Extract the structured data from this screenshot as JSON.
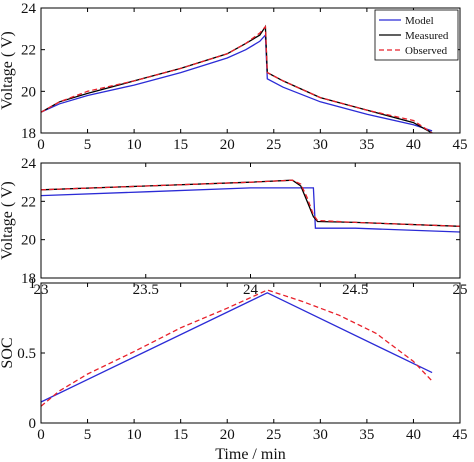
{
  "colors": {
    "model": "#2b2bd6",
    "measured": "#000000",
    "observed": "#e8202a"
  },
  "chart_data": [
    {
      "type": "line",
      "ylabel": "Voltage ( V)",
      "xlabel": "",
      "xlim": [
        0,
        45
      ],
      "ylim": [
        18,
        24
      ],
      "xticks": [
        "0",
        "5",
        "10",
        "15",
        "20",
        "25",
        "30",
        "35",
        "40",
        "45"
      ],
      "yticks": [
        "18",
        "20",
        "22",
        "24"
      ],
      "legend": {
        "position": "top-right",
        "entries": [
          "Model",
          "Measured",
          "Observed"
        ]
      },
      "series": [
        {
          "name": "Model",
          "x": [
            0,
            2,
            5,
            10,
            15,
            20,
            22,
            23.5,
            24.1,
            24.3,
            26,
            30,
            35,
            40,
            42
          ],
          "y": [
            19.0,
            19.4,
            19.8,
            20.3,
            20.9,
            21.6,
            22.0,
            22.4,
            22.7,
            20.6,
            20.2,
            19.5,
            18.9,
            18.4,
            18.1
          ]
        },
        {
          "name": "Measured",
          "x": [
            0,
            2,
            5,
            10,
            15,
            20,
            22,
            23.5,
            24.1,
            24.3,
            26,
            30,
            35,
            40,
            42
          ],
          "y": [
            19.0,
            19.5,
            19.9,
            20.5,
            21.1,
            21.8,
            22.3,
            22.7,
            23.1,
            20.9,
            20.5,
            19.7,
            19.1,
            18.5,
            18.0
          ]
        },
        {
          "name": "Observed",
          "x": [
            0,
            2,
            5,
            10,
            15,
            20,
            22,
            23.5,
            24.1,
            24.3,
            26,
            30,
            35,
            40,
            42
          ],
          "y": [
            19.0,
            19.5,
            20.0,
            20.5,
            21.1,
            21.8,
            22.3,
            22.8,
            23.1,
            20.9,
            20.5,
            19.7,
            19.1,
            18.6,
            18.0
          ]
        }
      ]
    },
    {
      "type": "line",
      "ylabel": "Voltage ( V)",
      "xlabel": "",
      "xlim": [
        23,
        25
      ],
      "ylim": [
        18,
        24
      ],
      "xticks": [
        "23",
        "23.5",
        "24",
        "24.5",
        "25"
      ],
      "yticks": [
        "18",
        "20",
        "22",
        "24"
      ],
      "series": [
        {
          "name": "Model",
          "x": [
            23,
            23.5,
            24.0,
            24.3,
            24.31,
            24.5,
            25
          ],
          "y": [
            22.3,
            22.5,
            22.7,
            22.7,
            20.6,
            20.6,
            20.4
          ]
        },
        {
          "name": "Measured",
          "x": [
            23,
            23.5,
            24.0,
            24.2,
            24.24,
            24.27,
            24.3,
            24.32,
            24.5,
            25
          ],
          "y": [
            22.6,
            22.8,
            23.0,
            23.1,
            22.8,
            22.0,
            21.2,
            20.95,
            20.9,
            20.7
          ]
        },
        {
          "name": "Observed",
          "x": [
            23,
            23.5,
            24.0,
            24.2,
            24.24,
            24.27,
            24.3,
            24.32,
            24.5,
            25
          ],
          "y": [
            22.6,
            22.8,
            23.0,
            23.1,
            22.9,
            22.2,
            21.3,
            21.0,
            20.9,
            20.7
          ]
        }
      ]
    },
    {
      "type": "line",
      "ylabel": "SOC",
      "xlabel": "Time / min",
      "xlim": [
        0,
        45
      ],
      "ylim": [
        0,
        1
      ],
      "xticks": [
        "0",
        "5",
        "10",
        "15",
        "20",
        "25",
        "30",
        "35",
        "40",
        "45"
      ],
      "yticks": [
        "0",
        "0.5",
        "1"
      ],
      "series": [
        {
          "name": "Model",
          "x": [
            0,
            24.3,
            42
          ],
          "y": [
            0.15,
            0.93,
            0.36
          ]
        },
        {
          "name": "Observed",
          "x": [
            0,
            2,
            5,
            10,
            15,
            20,
            24.3,
            28,
            32,
            36,
            40,
            42
          ],
          "y": [
            0.12,
            0.23,
            0.35,
            0.51,
            0.68,
            0.82,
            0.95,
            0.87,
            0.77,
            0.64,
            0.44,
            0.3
          ]
        }
      ]
    }
  ]
}
